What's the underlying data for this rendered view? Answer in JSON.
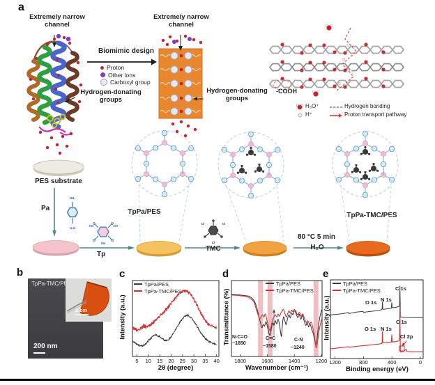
{
  "panels": {
    "a": "a",
    "b": "b",
    "c": "c",
    "d": "d",
    "e": "e"
  },
  "colors": {
    "accent_red": "#d43030",
    "proton_red": "#c22430",
    "other_ion_purple": "#7d3cc8",
    "carboxyl_fill": "#e9e9f4",
    "membrane_orange": "#e8872e",
    "arrow_teal": "#4e8585",
    "disk_pes": "#edebe3",
    "disk_pa": "#f4c3cb",
    "disk_tppa": "#f4c25e",
    "disk_tppa_tmc_fresh": "#f2a341",
    "disk_tppa_tmc": "#e96a1e",
    "band_pink": "rgba(216,112,122,0.45)"
  },
  "panel_a": {
    "left_channel_label": [
      "Extremely narrow",
      "channel"
    ],
    "right_channel_label": [
      "Extremely narrow",
      "channel"
    ],
    "biomimic_label": "Biomimic design",
    "dot_legend": {
      "proton": "Proton",
      "other_ions": "Other ions",
      "carboxyl": "Carboxyl group"
    },
    "hydrogen_donating_left": [
      "Hydrogen-donating",
      "groups"
    ],
    "hydrogen_donating_right": [
      "Hydrogen-donating",
      "groups"
    ],
    "cooh": "-COOH",
    "hydronium": "H₃O⁺",
    "proton_h": "H⁺",
    "hydrogen_bonding": "Hydrogen bonding",
    "proton_pathway": "Proton transport pathway",
    "pes_substrate": "PES substrate",
    "reagent_pa": "Pa",
    "reagent_tp": "Tp",
    "reagent_tmc": "TMC",
    "condition_temp": "80 °C 5 min",
    "condition_solvent": "H₂O",
    "cof1_label": "TpPa/PES",
    "cof3_label": "TpPa-TMC/PES",
    "atoms": {
      "pa_top": "NH₂",
      "pa_bottom": "H₂N",
      "tp_ho": "HO",
      "tp_oh_r": "OH",
      "tp_oh_b": "OH",
      "tmc_cl1": "Cl",
      "tmc_cl2": "Cl",
      "tmc_cl3": "Cl"
    }
  },
  "panel_b": {
    "membrane_label": "TpPa-TMC/PES",
    "scale_bar": "200 nm",
    "inset_scale": "1 cm"
  },
  "chart_data": [
    {
      "id": "xrd",
      "type": "line",
      "xlabel": "2θ (degree)",
      "ylabel": "Intensity (a.u.)",
      "x_ticks": [
        5,
        10,
        15,
        20,
        25,
        30,
        35,
        40
      ],
      "x_range": [
        3,
        41
      ],
      "grid": false,
      "legend_position": "top-left",
      "legend": [
        "TpPa/PES",
        "TpPa-TMC/PES"
      ],
      "series": [
        {
          "name": "TpPa/PES",
          "color": "#3a3a3a",
          "noise": 0.014,
          "points": [
            [
              3,
              0.2
            ],
            [
              5,
              0.16
            ],
            [
              7,
              0.135
            ],
            [
              9,
              0.17
            ],
            [
              11,
              0.24
            ],
            [
              13,
              0.285
            ],
            [
              15,
              0.265
            ],
            [
              17,
              0.215
            ],
            [
              18,
              0.205
            ],
            [
              20,
              0.26
            ],
            [
              22,
              0.36
            ],
            [
              24,
              0.46
            ],
            [
              26,
              0.525
            ],
            [
              27,
              0.545
            ],
            [
              28,
              0.535
            ],
            [
              30,
              0.465
            ],
            [
              32,
              0.365
            ],
            [
              34,
              0.27
            ],
            [
              36,
              0.21
            ],
            [
              38,
              0.175
            ],
            [
              40,
              0.16
            ]
          ]
        },
        {
          "name": "TpPa-TMC/PES",
          "color": "#d43030",
          "noise": 0.022,
          "points": [
            [
              3,
              0.38
            ],
            [
              5,
              0.35
            ],
            [
              7,
              0.38
            ],
            [
              8,
              0.405
            ],
            [
              9,
              0.39
            ],
            [
              11,
              0.42
            ],
            [
              13,
              0.47
            ],
            [
              15,
              0.53
            ],
            [
              17,
              0.59
            ],
            [
              19,
              0.66
            ],
            [
              21,
              0.74
            ],
            [
              23,
              0.81
            ],
            [
              25,
              0.855
            ],
            [
              26,
              0.865
            ],
            [
              27,
              0.855
            ],
            [
              29,
              0.81
            ],
            [
              31,
              0.7
            ],
            [
              33,
              0.575
            ],
            [
              35,
              0.47
            ],
            [
              37,
              0.41
            ],
            [
              39,
              0.385
            ],
            [
              40,
              0.375
            ]
          ]
        }
      ]
    },
    {
      "id": "ftir",
      "type": "line",
      "xlabel": "Wavenumber (cm⁻¹)",
      "ylabel": "Transmittance (%)",
      "x_ticks": [
        1800,
        1600,
        1400,
        1200
      ],
      "x_range": [
        1865,
        1195
      ],
      "grid": false,
      "legend_position": "top-right",
      "legend": [
        "TpPa/PES",
        "TpPa-TMC/PES"
      ],
      "bands": [
        1650,
        1580,
        1240
      ],
      "series": [
        {
          "name": "TpPa/PES",
          "color": "#2f2f2f",
          "smooth": true,
          "points": [
            [
              1865,
              0.82
            ],
            [
              1800,
              0.81
            ],
            [
              1760,
              0.8
            ],
            [
              1730,
              0.79
            ],
            [
              1700,
              0.74
            ],
            [
              1680,
              0.66
            ],
            [
              1665,
              0.55
            ],
            [
              1650,
              0.44
            ],
            [
              1640,
              0.38
            ],
            [
              1630,
              0.42
            ],
            [
              1620,
              0.4
            ],
            [
              1610,
              0.46
            ],
            [
              1600,
              0.4
            ],
            [
              1590,
              0.32
            ],
            [
              1580,
              0.28
            ],
            [
              1570,
              0.36
            ],
            [
              1560,
              0.44
            ],
            [
              1550,
              0.41
            ],
            [
              1540,
              0.47
            ],
            [
              1530,
              0.43
            ],
            [
              1520,
              0.49
            ],
            [
              1510,
              0.42
            ],
            [
              1500,
              0.3
            ],
            [
              1495,
              0.27
            ],
            [
              1488,
              0.42
            ],
            [
              1480,
              0.52
            ],
            [
              1470,
              0.47
            ],
            [
              1460,
              0.42
            ],
            [
              1450,
              0.5
            ],
            [
              1440,
              0.55
            ],
            [
              1430,
              0.51
            ],
            [
              1420,
              0.57
            ],
            [
              1410,
              0.55
            ],
            [
              1400,
              0.6
            ],
            [
              1388,
              0.57
            ],
            [
              1375,
              0.51
            ],
            [
              1365,
              0.56
            ],
            [
              1352,
              0.49
            ],
            [
              1340,
              0.54
            ],
            [
              1328,
              0.47
            ],
            [
              1315,
              0.41
            ],
            [
              1305,
              0.45
            ],
            [
              1295,
              0.39
            ],
            [
              1285,
              0.43
            ],
            [
              1272,
              0.36
            ],
            [
              1260,
              0.3
            ],
            [
              1250,
              0.22
            ],
            [
              1240,
              0.16
            ],
            [
              1230,
              0.27
            ],
            [
              1220,
              0.42
            ],
            [
              1210,
              0.53
            ],
            [
              1200,
              0.6
            ],
            [
              1195,
              0.62
            ]
          ]
        },
        {
          "name": "TpPa-TMC/PES",
          "color": "#cf3535",
          "smooth": true,
          "points": [
            [
              1865,
              0.81
            ],
            [
              1800,
              0.8
            ],
            [
              1760,
              0.79
            ],
            [
              1730,
              0.77
            ],
            [
              1700,
              0.72
            ],
            [
              1685,
              0.64
            ],
            [
              1670,
              0.56
            ],
            [
              1655,
              0.5
            ],
            [
              1645,
              0.52
            ],
            [
              1635,
              0.55
            ],
            [
              1625,
              0.52
            ],
            [
              1615,
              0.56
            ],
            [
              1605,
              0.5
            ],
            [
              1595,
              0.42
            ],
            [
              1585,
              0.36
            ],
            [
              1578,
              0.34
            ],
            [
              1570,
              0.41
            ],
            [
              1560,
              0.49
            ],
            [
              1550,
              0.52
            ],
            [
              1540,
              0.55
            ],
            [
              1530,
              0.52
            ],
            [
              1520,
              0.56
            ],
            [
              1510,
              0.53
            ],
            [
              1500,
              0.57
            ],
            [
              1490,
              0.6
            ],
            [
              1480,
              0.62
            ],
            [
              1470,
              0.57
            ],
            [
              1460,
              0.52
            ],
            [
              1450,
              0.56
            ],
            [
              1440,
              0.6
            ],
            [
              1430,
              0.57
            ],
            [
              1420,
              0.61
            ],
            [
              1410,
              0.59
            ],
            [
              1400,
              0.62
            ],
            [
              1388,
              0.59
            ],
            [
              1375,
              0.55
            ],
            [
              1362,
              0.58
            ],
            [
              1350,
              0.53
            ],
            [
              1338,
              0.56
            ],
            [
              1325,
              0.5
            ],
            [
              1312,
              0.45
            ],
            [
              1300,
              0.47
            ],
            [
              1288,
              0.43
            ],
            [
              1275,
              0.45
            ],
            [
              1262,
              0.37
            ],
            [
              1252,
              0.28
            ],
            [
              1242,
              0.14
            ],
            [
              1235,
              0.12
            ],
            [
              1228,
              0.2
            ],
            [
              1218,
              0.33
            ],
            [
              1208,
              0.42
            ],
            [
              1200,
              0.48
            ],
            [
              1195,
              0.5
            ]
          ]
        }
      ]
    },
    {
      "id": "xps",
      "type": "line",
      "xlabel": "Binding energy (eV)",
      "ylabel": "Intensity (a.u.)",
      "x_ticks": [
        1200,
        800,
        400,
        0
      ],
      "x_range": [
        1265,
        -40
      ],
      "grid": false,
      "legend_position": "top-left",
      "legend": [
        "TpPa/PES",
        "TpPa-TMC/PES"
      ],
      "peak_labels": {
        "top": [
          "O 1s",
          "N 1s",
          "C 1s"
        ],
        "bottom": [
          "O 1s",
          "N 1s",
          "C 1s"
        ],
        "cl2p": "Cl 2p"
      },
      "series": [
        {
          "name": "TpPa/PES",
          "color": "#3a3a3a",
          "points": [
            [
              1265,
              0.555
            ],
            [
              1200,
              0.56
            ],
            [
              1100,
              0.57
            ],
            [
              1012,
              0.585
            ],
            [
              1005,
              0.572
            ],
            [
              900,
              0.59
            ],
            [
              806,
              0.6
            ],
            [
              799,
              0.588
            ],
            [
              700,
              0.6
            ],
            [
              600,
              0.61
            ],
            [
              545,
              0.62
            ],
            [
              538,
              0.63
            ],
            [
              533,
              0.72
            ],
            [
              528,
              0.63
            ],
            [
              520,
              0.625
            ],
            [
              450,
              0.635
            ],
            [
              408,
              0.64
            ],
            [
              402,
              0.71
            ],
            [
              396,
              0.645
            ],
            [
              350,
              0.65
            ],
            [
              300,
              0.66
            ],
            [
              292,
              0.68
            ],
            [
              287,
              0.92
            ],
            [
              283,
              0.7
            ],
            [
              281,
              0.53
            ],
            [
              240,
              0.525
            ],
            [
              150,
              0.52
            ],
            [
              60,
              0.52
            ],
            [
              0,
              0.52
            ],
            [
              -40,
              0.52
            ]
          ]
        },
        {
          "name": "TpPa-TMC/PES",
          "color": "#d43030",
          "points": [
            [
              1265,
              0.125
            ],
            [
              1200,
              0.13
            ],
            [
              1100,
              0.14
            ],
            [
              1012,
              0.15
            ],
            [
              1003,
              0.143
            ],
            [
              900,
              0.155
            ],
            [
              800,
              0.165
            ],
            [
              700,
              0.172
            ],
            [
              600,
              0.182
            ],
            [
              545,
              0.19
            ],
            [
              538,
              0.2
            ],
            [
              533,
              0.345
            ],
            [
              528,
              0.2
            ],
            [
              520,
              0.198
            ],
            [
              450,
              0.205
            ],
            [
              408,
              0.21
            ],
            [
              402,
              0.3
            ],
            [
              396,
              0.21
            ],
            [
              350,
              0.215
            ],
            [
              300,
              0.225
            ],
            [
              292,
              0.26
            ],
            [
              287,
              0.66
            ],
            [
              283,
              0.24
            ],
            [
              280,
              0.085
            ],
            [
              240,
              0.088
            ],
            [
              205,
              0.115
            ],
            [
              198,
              0.118
            ],
            [
              190,
              0.09
            ],
            [
              150,
              0.085
            ],
            [
              60,
              0.085
            ],
            [
              0,
              0.085
            ],
            [
              -40,
              0.085
            ]
          ]
        }
      ]
    }
  ],
  "panel_d_annotations": {
    "band1": [
      "N-C=O",
      "~1650"
    ],
    "band2": [
      "C=C",
      "~1580"
    ],
    "band3": [
      "C-N",
      "~1240"
    ]
  }
}
